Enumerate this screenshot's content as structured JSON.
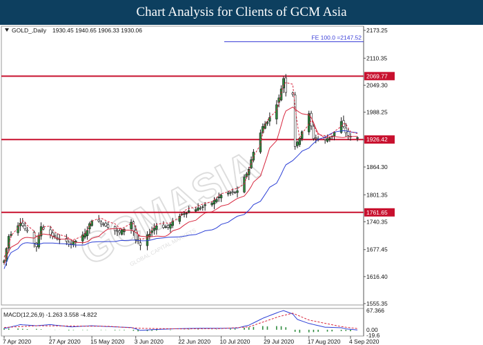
{
  "header": {
    "title": "Chart Analysis for Clients of GCM Asia"
  },
  "watermark": {
    "brand": "GCMASIA",
    "tagline": "GLOBAL CAPITAL MARKETS"
  },
  "colors": {
    "header_bg": "#0d3f5f",
    "bull_candle": "#2e8b3e",
    "bear_candle": "#1a1a1a",
    "ma_fast": "#d7263d",
    "ma_slow": "#2b3fd6",
    "level_line": "#c8102e",
    "fe_line": "#3b3fd8",
    "macd_line": "#2b3fd6",
    "signal_line": "#d7263d",
    "histogram": "#2e8b3e"
  },
  "chart_data": [
    {
      "type": "candlestick",
      "symbol_label": "GOLD_,Daily",
      "ohlc_label": "1930.45 1940.65 1906.33 1930.06",
      "x_ticks": [
        "7 Apr 2020",
        "27 Apr 2020",
        "15 May 2020",
        "3 Jun 2020",
        "22 Jun 2020",
        "10 Jul 2020",
        "29 Jul 2020",
        "17 Aug 2020",
        "4 Sep 2020"
      ],
      "y_ticks": [
        "2173.25",
        "2110.35",
        "2049.30",
        "1988.25",
        "1925.40",
        "1864.30",
        "1801.35",
        "1740.35",
        "1677.45",
        "1616.40",
        "1555.35"
      ],
      "ylim": [
        1555.35,
        2173.25
      ],
      "levels": [
        {
          "value": 2069.77,
          "label": "2069.77"
        },
        {
          "value": 1926.42,
          "label": "1926.42"
        },
        {
          "value": 1761.65,
          "label": "1761.65"
        }
      ],
      "fe_level": {
        "value": 2147.52,
        "label": "FE 100.0 =2147.52"
      },
      "close_series_keypoints": [
        [
          "7 Apr 2020",
          1652
        ],
        [
          "9 Apr 2020",
          1708
        ],
        [
          "14 Apr 2020",
          1740
        ],
        [
          "21 Apr 2020",
          1685
        ],
        [
          "23 Apr 2020",
          1730
        ],
        [
          "27 Apr 2020",
          1712
        ],
        [
          "1 May 2020",
          1700
        ],
        [
          "6 May 2020",
          1690
        ],
        [
          "12 May 2020",
          1712
        ],
        [
          "15 May 2020",
          1745
        ],
        [
          "19 May 2020",
          1738
        ],
        [
          "22 May 2020",
          1730
        ],
        [
          "27 May 2020",
          1715
        ],
        [
          "1 Jun 2020",
          1740
        ],
        [
          "3 Jun 2020",
          1700
        ],
        [
          "5 Jun 2020",
          1686
        ],
        [
          "9 Jun 2020",
          1715
        ],
        [
          "12 Jun 2020",
          1732
        ],
        [
          "17 Jun 2020",
          1728
        ],
        [
          "22 Jun 2020",
          1755
        ],
        [
          "26 Jun 2020",
          1765
        ],
        [
          "1 Jul 2020",
          1772
        ],
        [
          "6 Jul 2020",
          1783
        ],
        [
          "10 Jul 2020",
          1800
        ],
        [
          "14 Jul 2020",
          1806
        ],
        [
          "17 Jul 2020",
          1808
        ],
        [
          "22 Jul 2020",
          1860
        ],
        [
          "24 Jul 2020",
          1900
        ],
        [
          "28 Jul 2020",
          1955
        ],
        [
          "31 Jul 2020",
          1975
        ],
        [
          "4 Aug 2020",
          2019
        ],
        [
          "6 Aug 2020",
          2065
        ],
        [
          "7 Aug 2020",
          2035
        ],
        [
          "10 Aug 2020",
          2030
        ],
        [
          "11 Aug 2020",
          1912
        ],
        [
          "12 Aug 2020",
          1918
        ],
        [
          "14 Aug 2020",
          1945
        ],
        [
          "17 Aug 2020",
          1983
        ],
        [
          "19 Aug 2020",
          1930
        ],
        [
          "24 Aug 2020",
          1925
        ],
        [
          "27 Aug 2020",
          1935
        ],
        [
          "31 Aug 2020",
          1966
        ],
        [
          "2 Sep 2020",
          1942
        ],
        [
          "4 Sep 2020",
          1930
        ],
        [
          "7 Sep 2020",
          1930
        ]
      ],
      "indicators": [
        "MA fast (red)",
        "MA slow (blue)",
        "Dashed trend line (red)"
      ]
    },
    {
      "type": "line",
      "label": "MACD(12,26,9) -1.263 3.558 -4.822",
      "y_ticks": [
        "67.366",
        "0.00",
        "-19.6"
      ],
      "ylim": [
        -19.6,
        67.366
      ],
      "series": [
        {
          "role": "macd",
          "keypoints": [
            [
              "7 Apr 2020",
              4
            ],
            [
              "14 Apr 2020",
              18
            ],
            [
              "21 Apr 2020",
              14
            ],
            [
              "27 Apr 2020",
              18
            ],
            [
              "6 May 2020",
              10
            ],
            [
              "15 May 2020",
              14
            ],
            [
              "22 May 2020",
              11
            ],
            [
              "1 Jun 2020",
              8
            ],
            [
              "5 Jun 2020",
              -2
            ],
            [
              "12 Jun 2020",
              1
            ],
            [
              "22 Jun 2020",
              4
            ],
            [
              "1 Jul 2020",
              5
            ],
            [
              "10 Jul 2020",
              5
            ],
            [
              "17 Jul 2020",
              6
            ],
            [
              "22 Jul 2020",
              16
            ],
            [
              "28 Jul 2020",
              40
            ],
            [
              "4 Aug 2020",
              62
            ],
            [
              "6 Aug 2020",
              67
            ],
            [
              "10 Aug 2020",
              55
            ],
            [
              "12 Aug 2020",
              36
            ],
            [
              "17 Aug 2020",
              22
            ],
            [
              "24 Aug 2020",
              9
            ],
            [
              "31 Aug 2020",
              7
            ],
            [
              "2 Sep 2020",
              3
            ],
            [
              "7 Sep 2020",
              -1
            ]
          ]
        },
        {
          "role": "signal",
          "keypoints": [
            [
              "7 Apr 2020",
              8
            ],
            [
              "21 Apr 2020",
              14
            ],
            [
              "6 May 2020",
              13
            ],
            [
              "22 May 2020",
              12
            ],
            [
              "5 Jun 2020",
              5
            ],
            [
              "22 Jun 2020",
              3
            ],
            [
              "10 Jul 2020",
              4
            ],
            [
              "22 Jul 2020",
              10
            ],
            [
              "4 Aug 2020",
              46
            ],
            [
              "10 Aug 2020",
              58
            ],
            [
              "17 Aug 2020",
              34
            ],
            [
              "31 Aug 2020",
              11
            ],
            [
              "7 Sep 2020",
              4
            ]
          ]
        }
      ],
      "histogram_keypoints": [
        [
          "7 Apr 2020",
          6
        ],
        [
          "21 Apr 2020",
          2
        ],
        [
          "6 May 2020",
          -2
        ],
        [
          "22 May 2020",
          0
        ],
        [
          "5 Jun 2020",
          -5
        ],
        [
          "22 Jun 2020",
          1
        ],
        [
          "10 Jul 2020",
          1
        ],
        [
          "28 Jul 2020",
          12
        ],
        [
          "6 Aug 2020",
          12
        ],
        [
          "12 Aug 2020",
          -10
        ],
        [
          "24 Aug 2020",
          -7
        ],
        [
          "7 Sep 2020",
          -4
        ]
      ]
    }
  ]
}
